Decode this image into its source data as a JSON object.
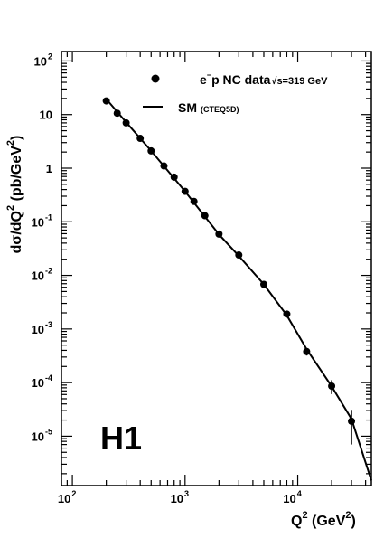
{
  "chart_data": {
    "type": "scatter",
    "x_scale": "log",
    "y_scale": "log",
    "xlim": [
      80,
      45000
    ],
    "ylim": [
      1.2e-06,
      150
    ],
    "xlabel": {
      "main": "Q",
      "sup": "2",
      "unit_open": " (GeV",
      "unit_sup": "2",
      "unit_close": ")"
    },
    "ylabel": {
      "main": "dσ/dQ",
      "sup": "2",
      "unit_open": " (pb/GeV",
      "unit_sup": "2",
      "unit_close": ")"
    },
    "x_ticks": [
      {
        "base": "10",
        "exp": "2",
        "value": 100
      },
      {
        "base": "10",
        "exp": "3",
        "value": 1000
      },
      {
        "base": "10",
        "exp": "4",
        "value": 10000
      }
    ],
    "y_ticks": [
      {
        "base": "10",
        "exp": "2",
        "value": 100
      },
      {
        "base": "10",
        "exp": "",
        "value": 10
      },
      {
        "base": "1",
        "exp": "",
        "value": 1
      },
      {
        "base": "10",
        "exp": "-1",
        "value": 0.1
      },
      {
        "base": "10",
        "exp": "-2",
        "value": 0.01
      },
      {
        "base": "10",
        "exp": "-3",
        "value": 0.001
      },
      {
        "base": "10",
        "exp": "-4",
        "value": 0.0001
      },
      {
        "base": "10",
        "exp": "-5",
        "value": 1e-05
      }
    ],
    "series": [
      {
        "name": "e⁻p NC data √s=319 GeV",
        "kind": "points",
        "points": [
          {
            "x": 200,
            "y": 18.0,
            "err": 0.6
          },
          {
            "x": 250,
            "y": 10.6,
            "err": 0.4
          },
          {
            "x": 300,
            "y": 7.0,
            "err": 0.3
          },
          {
            "x": 400,
            "y": 3.6,
            "err": 0.15
          },
          {
            "x": 500,
            "y": 2.1,
            "err": 0.08
          },
          {
            "x": 650,
            "y": 1.1,
            "err": 0.05
          },
          {
            "x": 800,
            "y": 0.68,
            "err": 0.03
          },
          {
            "x": 1000,
            "y": 0.37,
            "err": 0.02
          },
          {
            "x": 1200,
            "y": 0.24,
            "err": 0.012
          },
          {
            "x": 1500,
            "y": 0.13,
            "err": 0.007
          },
          {
            "x": 2000,
            "y": 0.059,
            "err": 0.003
          },
          {
            "x": 3000,
            "y": 0.024,
            "err": 0.0012
          },
          {
            "x": 5000,
            "y": 0.0068,
            "err": 0.0005
          },
          {
            "x": 8000,
            "y": 0.0019,
            "err": 0.00015
          },
          {
            "x": 12000,
            "y": 0.00038,
            "err": 6e-05
          },
          {
            "x": 20000,
            "y": 8.6e-05,
            "err": 2.5e-05
          },
          {
            "x": 30000,
            "y": 1.9e-05,
            "err": 1.2e-05
          }
        ]
      },
      {
        "name": "SM (CTEQ5D)",
        "kind": "line",
        "points": [
          {
            "x": 200,
            "y": 19.5
          },
          {
            "x": 300,
            "y": 7.2
          },
          {
            "x": 500,
            "y": 2.1
          },
          {
            "x": 1000,
            "y": 0.37
          },
          {
            "x": 2000,
            "y": 0.058
          },
          {
            "x": 3000,
            "y": 0.023
          },
          {
            "x": 5000,
            "y": 0.0068
          },
          {
            "x": 8000,
            "y": 0.0018
          },
          {
            "x": 12000,
            "y": 0.00042
          },
          {
            "x": 20000,
            "y": 8.5e-05
          },
          {
            "x": 30000,
            "y": 2.1e-05
          },
          {
            "x": 45000,
            "y": 1.5e-06
          }
        ]
      }
    ],
    "legend": {
      "placement": "top-right",
      "data_label_main": "e",
      "data_label_sup": "−",
      "data_label_rest": "p NC data",
      "data_label_sqrt": "√s=319 GeV",
      "model_label_main": "SM",
      "model_label_small": "(CTEQ5D)"
    },
    "annotation": "H1"
  }
}
